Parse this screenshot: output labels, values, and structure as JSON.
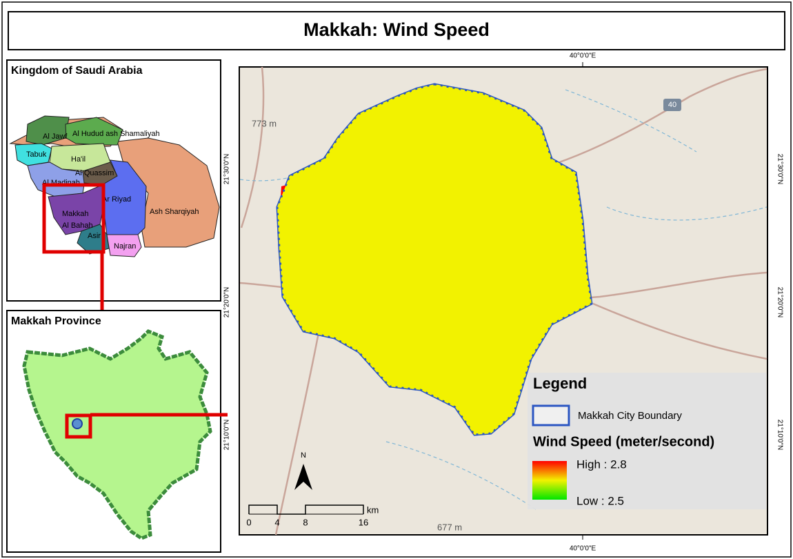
{
  "header": {
    "title": "Makkah: Wind Speed"
  },
  "inset_country": {
    "title": "Kingdom of Saudi Arabia",
    "regions": [
      "Al Jawf",
      "Al Hudud ash Shamaliyah",
      "Tabuk",
      "Ha'il",
      "Al Quassim",
      "Al Madinah",
      "Ar Riyad",
      "Makkah",
      "Al Bahah",
      "Asir",
      "Ash Sharqiyah",
      "Najran"
    ]
  },
  "inset_province": {
    "title": "Makkah Province"
  },
  "main_map": {
    "coordinates": {
      "top": "40°0'0\"E",
      "bottom": "40°0'0\"E",
      "left": [
        "21°30'0\"N",
        "21°20'0\"N",
        "21°10'0\"N"
      ],
      "right": [
        "21°30'0\"N",
        "21°20'0\"N",
        "21°10'0\"N"
      ]
    },
    "elevations": [
      "773 m",
      "677 m"
    ],
    "road_shield": "40",
    "north_arrow": "N",
    "scale_bar": {
      "ticks": [
        0,
        4,
        8,
        16
      ],
      "unit": "km"
    }
  },
  "legend": {
    "title": "Legend",
    "boundary": "Makkah City Boundary",
    "raster_title": "Wind Speed (meter/second)",
    "high": "High : 2.8",
    "low": "Low : 2.5"
  }
}
